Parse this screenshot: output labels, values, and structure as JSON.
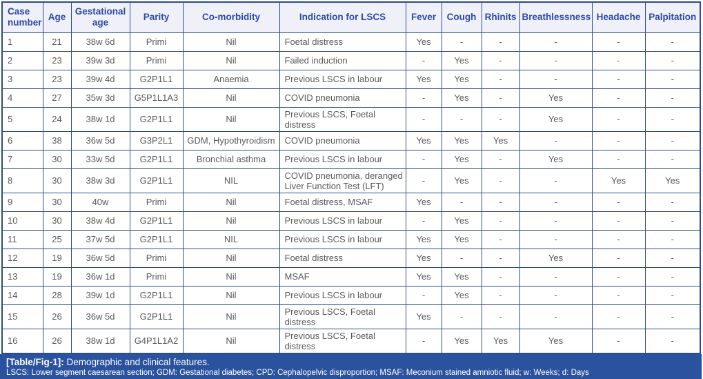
{
  "table": {
    "columns": [
      "Case number",
      "Age",
      "Gestational age",
      "Parity",
      "Co-morbidity",
      "Indication for LSCS",
      "Fever",
      "Cough",
      "Rhinits",
      "Breathlessness",
      "Headache",
      "Palpitation"
    ],
    "rows": [
      [
        "1",
        "21",
        "38w 6d",
        "Primi",
        "Nil",
        "Foetal distress",
        "Yes",
        "-",
        "-",
        "-",
        "-",
        "-"
      ],
      [
        "2",
        "23",
        "39w 3d",
        "Primi",
        "Nil",
        "Failed induction",
        "-",
        "Yes",
        "-",
        "-",
        "-",
        "-"
      ],
      [
        "3",
        "23",
        "39w 4d",
        "G2P1L1",
        "Anaemia",
        "Previous LSCS in labour",
        "Yes",
        "Yes",
        "-",
        "-",
        "-",
        "-"
      ],
      [
        "4",
        "27",
        "35w 3d",
        "G5P1L1A3",
        "Nil",
        "COVID pneumonia",
        "-",
        "Yes",
        "-",
        "Yes",
        "-",
        "-"
      ],
      [
        "5",
        "24",
        "38w 1d",
        "G2P1L1",
        "Nil",
        "Previous LSCS, Foetal distress",
        "-",
        "-",
        "-",
        "Yes",
        "-",
        "-"
      ],
      [
        "6",
        "38",
        "36w 5d",
        "G3P2L1",
        "GDM, Hypothyroidism",
        "COVID pneumonia",
        "Yes",
        "Yes",
        "Yes",
        "-",
        "-",
        "-"
      ],
      [
        "7",
        "30",
        "33w 5d",
        "G2P1L1",
        "Bronchial asthma",
        "Previous LSCS in labour",
        "-",
        "Yes",
        "-",
        "Yes",
        "-",
        "-"
      ],
      [
        "8",
        "30",
        "38w 3d",
        "G2P1L1",
        "NIL",
        "COVID pneumonia, deranged Liver Function Test (LFT)",
        "-",
        "Yes",
        "-",
        "-",
        "Yes",
        "Yes"
      ],
      [
        "9",
        "30",
        "40w",
        "Primi",
        "Nil",
        "Foetal distress, MSAF",
        "Yes",
        "-",
        "-",
        "-",
        "-",
        "-"
      ],
      [
        "10",
        "30",
        "38w 4d",
        "G2P1L1",
        "Nil",
        "Previous LSCS in labour",
        "-",
        "Yes",
        "-",
        "-",
        "-",
        "-"
      ],
      [
        "11",
        "25",
        "37w 5d",
        "G2P1L1",
        "NIL",
        "Previous LSCS in labour",
        "Yes",
        "Yes",
        "-",
        "-",
        "-",
        "-"
      ],
      [
        "12",
        "19",
        "36w 5d",
        "Primi",
        "Nil",
        "Foetal distress",
        "Yes",
        "-",
        "-",
        "Yes",
        "-",
        "-"
      ],
      [
        "13",
        "19",
        "36w 1d",
        "Primi",
        "Nil",
        "MSAF",
        "Yes",
        "Yes",
        "-",
        "-",
        "-",
        "-"
      ],
      [
        "14",
        "28",
        "39w 1d",
        "G2P1L1",
        "Nil",
        "Previous LSCS in labour",
        "-",
        "Yes",
        "-",
        "-",
        "-",
        "-"
      ],
      [
        "15",
        "26",
        "36w 5d",
        "G2P1L1",
        "Nil",
        "Previous LSCS, Foetal distress",
        "Yes",
        "-",
        "-",
        "-",
        "-",
        "-"
      ],
      [
        "16",
        "26",
        "38w 1d",
        "G4P1L1A2",
        "Nil",
        "Previous LSCS, Foetal distress",
        "-",
        "Yes",
        "Yes",
        "Yes",
        "-",
        "-"
      ]
    ]
  },
  "caption": {
    "label": "[Table/Fig-1]:",
    "text": "Demographic and clinical features.",
    "abbreviations": "LSCS: Lower segment caesarean section; GDM: Gestational diabetes; CPD: Cephalopelvic disproportion; MSAF: Meconium stained amniotic fluid; w: Weeks; d: Days"
  },
  "colors": {
    "border": "#2d4a89",
    "header_text": "#2b4aa3",
    "header_bg": "#f0f1f8",
    "body_text": "#58595b",
    "caption_bg": "#2b529e",
    "caption_text": "#ffffff"
  }
}
